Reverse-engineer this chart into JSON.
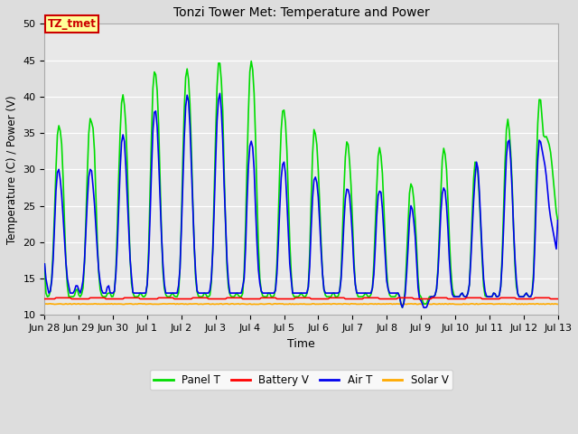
{
  "title": "Tonzi Tower Met: Temperature and Power",
  "xlabel": "Time",
  "ylabel": "Temperature (C) / Power (V)",
  "ylim": [
    10,
    50
  ],
  "xlim": [
    0,
    360
  ],
  "fig_bg_color": "#dddddd",
  "plot_bg_color": "#e8e8e8",
  "annotation_text": "TZ_tmet",
  "annotation_bg": "#ffff99",
  "annotation_border": "#cc0000",
  "annotation_text_color": "#cc0000",
  "series": {
    "panel_t": {
      "color": "#00dd00",
      "label": "Panel T",
      "linewidth": 1.2
    },
    "battery_v": {
      "color": "#ff0000",
      "label": "Battery V",
      "linewidth": 1.2
    },
    "air_t": {
      "color": "#0000ee",
      "label": "Air T",
      "linewidth": 1.2
    },
    "solar_v": {
      "color": "#ffaa00",
      "label": "Solar V",
      "linewidth": 1.2
    }
  },
  "xtick_labels": [
    "Jun 28",
    "Jun 29",
    "Jun 30",
    "Jul 1",
    "Jul 2",
    "Jul 3",
    "Jul 4",
    "Jul 5",
    "Jul 6",
    "Jul 7",
    "Jul 8",
    "Jul 9",
    "Jul 10",
    "Jul 11",
    "Jul 12",
    "Jul 13"
  ],
  "xtick_positions": [
    0,
    24,
    48,
    72,
    96,
    120,
    144,
    168,
    192,
    216,
    240,
    264,
    288,
    312,
    336,
    360
  ],
  "ytick_positions": [
    10,
    15,
    20,
    25,
    30,
    35,
    40,
    45,
    50
  ],
  "panel_t_data": [
    17,
    13,
    12.5,
    12.5,
    13,
    14,
    17,
    22,
    27,
    33,
    36,
    36,
    35,
    33,
    28,
    22,
    17,
    14,
    12.5,
    12.5,
    12.5,
    12.5,
    12.5,
    13,
    14,
    13,
    12.5,
    12.5,
    13,
    14,
    18,
    24,
    30,
    35,
    37,
    36.5,
    36,
    34,
    28,
    22,
    17,
    14,
    13,
    12.5,
    12.5,
    12.5,
    12.5,
    13,
    13,
    13,
    12.5,
    12.5,
    13,
    15,
    20,
    27,
    33,
    38,
    40.5,
    40,
    38,
    35,
    29,
    22,
    17,
    14,
    13,
    12.5,
    12.5,
    12.5,
    12.5,
    13,
    13,
    12.5,
    12.5,
    12.5,
    13,
    15,
    21,
    29,
    36,
    42,
    43.5,
    43,
    41,
    37,
    30,
    23,
    17,
    14,
    13,
    12.5,
    12.5,
    12.5,
    12.5,
    13,
    13,
    12.5,
    12.5,
    12.5,
    13,
    16,
    22,
    30,
    37,
    42,
    44,
    43.5,
    41,
    37,
    30,
    23,
    18,
    14,
    13,
    12.5,
    12.5,
    12.5,
    12.5,
    13,
    13,
    12.5,
    12.5,
    12.5,
    13,
    16,
    22,
    30,
    37,
    43,
    45,
    44.5,
    42,
    38,
    30,
    23,
    17,
    14,
    13,
    12.5,
    12.5,
    12.5,
    12.5,
    13,
    13,
    12.5,
    12.5,
    12.5,
    13,
    16,
    22,
    30,
    37,
    43,
    45,
    44.5,
    42,
    38,
    30,
    23,
    17,
    14,
    13,
    12.5,
    12.5,
    12.5,
    12.5,
    13,
    13,
    12.5,
    12.5,
    12.5,
    13,
    15,
    20,
    27,
    33,
    37,
    38.5,
    38,
    36,
    32,
    26,
    20,
    16,
    13,
    12.5,
    12.5,
    12.5,
    12.5,
    12.5,
    13,
    13,
    12.5,
    12.5,
    12.5,
    13,
    14,
    19,
    26,
    32,
    35.5,
    35,
    34,
    31,
    27,
    22,
    17,
    14,
    13,
    12.5,
    12.5,
    12.5,
    12.5,
    12.5,
    13,
    13,
    12.5,
    12.5,
    12.5,
    13,
    14,
    19,
    25,
    30,
    33.5,
    34,
    33,
    30,
    27,
    22,
    17,
    14,
    13,
    12.5,
    12.5,
    12.5,
    12.5,
    12.5,
    13,
    13,
    12.5,
    12.5,
    12.5,
    13,
    14,
    18,
    23,
    28,
    32,
    33,
    32,
    30,
    26,
    21,
    17,
    14,
    13,
    12.5,
    12.5,
    12.5,
    12.5,
    12.5,
    13,
    13,
    12.5,
    11.5,
    11.0,
    11.5,
    13,
    17,
    21,
    26,
    28,
    28,
    27,
    25,
    22,
    18,
    14,
    12.5,
    12.5,
    12.0,
    11.5,
    11.5,
    11.5,
    12.0,
    12.5,
    12.5,
    12.5,
    12.5,
    12.5,
    13,
    14,
    18,
    23,
    28,
    32,
    33,
    32,
    30,
    26,
    21,
    17,
    14,
    13,
    12.5,
    12.5,
    12.5,
    12.5,
    12.5,
    13,
    13,
    12.5,
    12.5,
    12.5,
    13,
    14,
    18,
    23,
    28,
    31,
    31,
    30.5,
    28,
    24,
    20,
    16,
    13,
    12.5,
    12.5,
    12.5,
    12.5,
    12.5,
    12.5,
    13,
    13,
    12.5,
    12.5,
    12.5,
    13,
    15,
    21,
    27,
    33,
    36.5,
    37,
    35,
    32,
    28,
    22,
    17,
    14,
    13,
    12.5,
    12.5,
    12.5,
    12.5,
    12.5,
    13,
    13,
    12.5,
    12.5,
    12.5,
    13,
    16,
    22,
    30,
    36,
    39.5,
    40,
    38,
    35,
    34,
    35,
    34,
    34,
    33,
    32,
    30,
    28,
    26,
    24,
    23
  ],
  "air_t_data": [
    17,
    15,
    14,
    13,
    13,
    14,
    16,
    20,
    25,
    29,
    30,
    30,
    28,
    26,
    23,
    20,
    17,
    15,
    14,
    13,
    13,
    13,
    13,
    14,
    14,
    14,
    13,
    13,
    14,
    15,
    18,
    22,
    26,
    29,
    30,
    30,
    28,
    26,
    23,
    20,
    17,
    15,
    14,
    13,
    13,
    13,
    13,
    14,
    14,
    13,
    13,
    13,
    13,
    15,
    18,
    23,
    28,
    33,
    34.5,
    35,
    33,
    29,
    25,
    21,
    17,
    15,
    13,
    13,
    13,
    13,
    13,
    13,
    13,
    13,
    13,
    13,
    13,
    15,
    19,
    25,
    31,
    36,
    38,
    38,
    36,
    32,
    27,
    22,
    18,
    15,
    13,
    13,
    13,
    13,
    13,
    13,
    13,
    13,
    13,
    13,
    14,
    16,
    21,
    27,
    33,
    38,
    40,
    40.5,
    38,
    34,
    28,
    23,
    18,
    15,
    13,
    13,
    13,
    13,
    13,
    13,
    13,
    13,
    13,
    13,
    14,
    16,
    21,
    27,
    33,
    38,
    40,
    40.5,
    38,
    34,
    28,
    23,
    18,
    15,
    13,
    13,
    13,
    13,
    13,
    13,
    13,
    13,
    13,
    13,
    14,
    15,
    19,
    25,
    30,
    33,
    34,
    33.5,
    32,
    27,
    22,
    18,
    15,
    14,
    13,
    13,
    13,
    13,
    13,
    13,
    13,
    13,
    13,
    13,
    13,
    14,
    18,
    22,
    27,
    30,
    31,
    31,
    29,
    25,
    21,
    17,
    15,
    13,
    13,
    13,
    13,
    13,
    13,
    13,
    13,
    13,
    13,
    13,
    13,
    14,
    17,
    22,
    26,
    28.5,
    29,
    28.5,
    27,
    24,
    20,
    17,
    14,
    13,
    13,
    13,
    13,
    13,
    13,
    13,
    13,
    13,
    13,
    13,
    13,
    14,
    17,
    21,
    25,
    27,
    27.5,
    27,
    26,
    23,
    20,
    16,
    14,
    13,
    13,
    13,
    13,
    13,
    13,
    13,
    13,
    13,
    13,
    13,
    13,
    14,
    16,
    20,
    24,
    26.5,
    27,
    27,
    25,
    22,
    19,
    15,
    14,
    13,
    13,
    13,
    13,
    13,
    13,
    13,
    13,
    12.5,
    11.5,
    11.0,
    11.5,
    12.5,
    15,
    18,
    22,
    25,
    25,
    24,
    22,
    20,
    16,
    13,
    12.0,
    12.0,
    11.5,
    11.0,
    11.0,
    11.0,
    11.5,
    12.0,
    12.5,
    12.5,
    12.5,
    12.5,
    13,
    14,
    17,
    21,
    25,
    27,
    27.5,
    27,
    25,
    22,
    18,
    15,
    13,
    12.5,
    12.5,
    12.5,
    12.5,
    12.5,
    12.5,
    13,
    13,
    12.5,
    12.5,
    12.5,
    13,
    14,
    17,
    21,
    25,
    28,
    31,
    31,
    29,
    25,
    21,
    17,
    14,
    13,
    12.5,
    12.5,
    12.5,
    12.5,
    12.5,
    13,
    13,
    12.5,
    12.5,
    12.5,
    13,
    15,
    19,
    24,
    29,
    33,
    34,
    34,
    31,
    27,
    22,
    18,
    15,
    13,
    12.5,
    12.5,
    12.5,
    12.5,
    12.5,
    13,
    13,
    12.5,
    12.5,
    12.5,
    13,
    15,
    20,
    26,
    31,
    34,
    34,
    33,
    32,
    31,
    30,
    28,
    26,
    24,
    23,
    22,
    21,
    20,
    19,
    23
  ],
  "battery_v": 12.2,
  "solar_v": 11.5
}
